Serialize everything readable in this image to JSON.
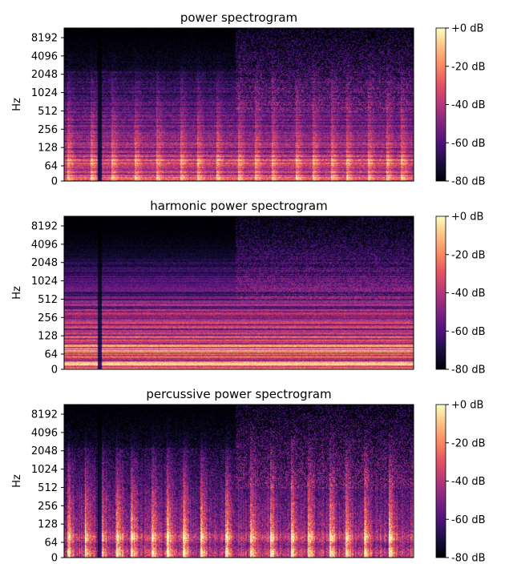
{
  "chart_data": [
    {
      "type": "heatmap",
      "title": "power spectrogram",
      "ylabel": "Hz",
      "xlabel": "",
      "y_scale": "log (symlog)",
      "y_ticks": [
        "0",
        "64",
        "128",
        "256",
        "512",
        "1024",
        "2048",
        "4096",
        "8192"
      ],
      "colormap": "magma",
      "colorbar": {
        "ticks": [
          "+0 dB",
          "-20 dB",
          "-40 dB",
          "-60 dB",
          "-80 dB"
        ],
        "range_db": [
          -80,
          0
        ]
      },
      "note_pattern": "full"
    },
    {
      "type": "heatmap",
      "title": "harmonic power spectrogram",
      "ylabel": "Hz",
      "xlabel": "",
      "y_scale": "log (symlog)",
      "y_ticks": [
        "0",
        "64",
        "128",
        "256",
        "512",
        "1024",
        "2048",
        "4096",
        "8192"
      ],
      "colormap": "magma",
      "colorbar": {
        "ticks": [
          "+0 dB",
          "-20 dB",
          "-40 dB",
          "-60 dB",
          "-80 dB"
        ],
        "range_db": [
          -80,
          0
        ]
      },
      "note_pattern": "horizontal"
    },
    {
      "type": "heatmap",
      "title": "percussive power spectrogram",
      "ylabel": "Hz",
      "xlabel": "",
      "y_scale": "log (symlog)",
      "y_ticks": [
        "0",
        "64",
        "128",
        "256",
        "512",
        "1024",
        "2048",
        "4096",
        "8192"
      ],
      "colormap": "magma",
      "colorbar": {
        "ticks": [
          "+0 dB",
          "-20 dB",
          "-40 dB",
          "-60 dB",
          "-80 dB"
        ],
        "range_db": [
          -80,
          0
        ]
      },
      "note_pattern": "vertical"
    }
  ]
}
